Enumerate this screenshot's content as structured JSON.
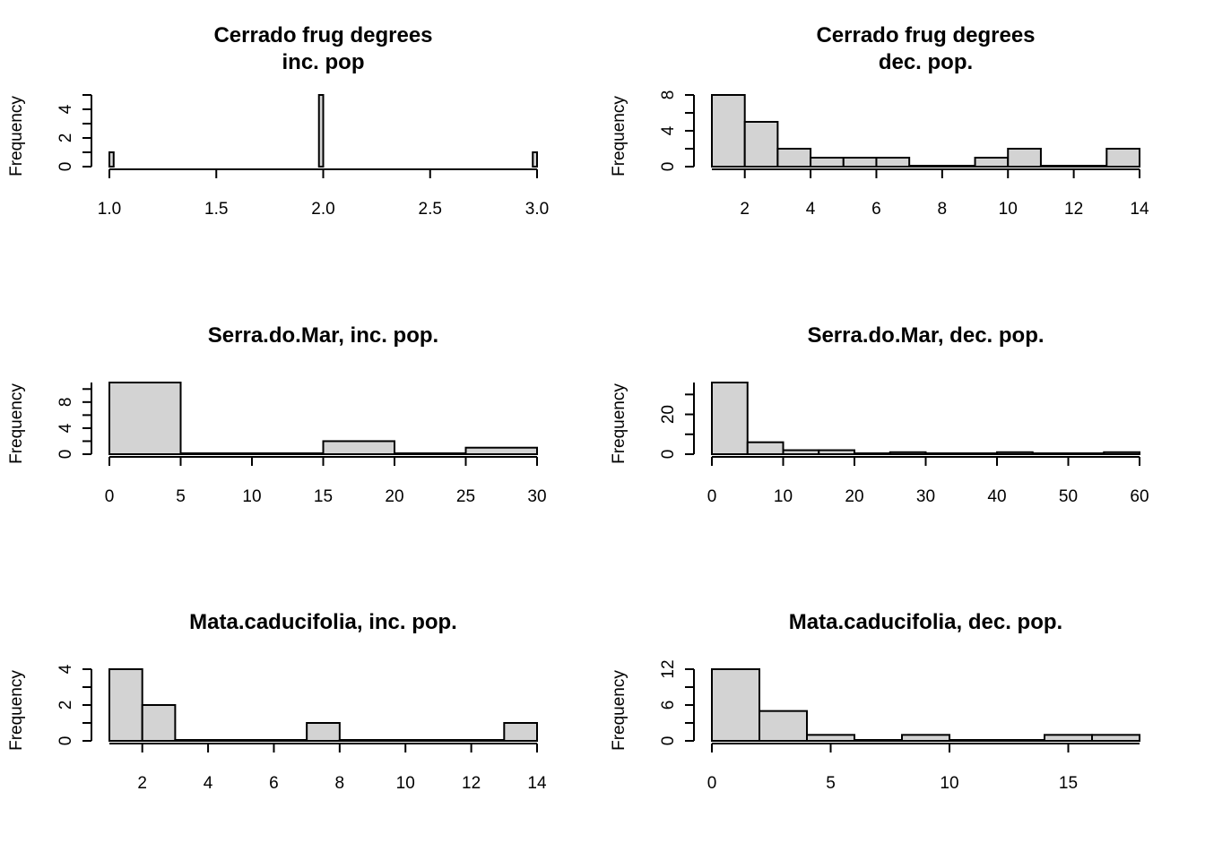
{
  "colors": {
    "bar_fill": "#d3d3d3",
    "bar_stroke": "#000000",
    "axis": "#000000",
    "background": "#ffffff"
  },
  "chart_data": [
    {
      "type": "bar",
      "title": [
        "Cerrado frug degrees",
        "inc. pop"
      ],
      "xlabel": "",
      "ylabel": "Frequency",
      "xlim": [
        1,
        3
      ],
      "ylim": [
        0,
        5
      ],
      "xticks": [
        "1.0",
        "1.5",
        "2.0",
        "2.5",
        "3.0"
      ],
      "yticks": [
        "0",
        "2",
        "4"
      ],
      "bins": [
        {
          "x0": 1.0,
          "x1": 1.02,
          "count": 1
        },
        {
          "x0": 1.98,
          "x1": 2.0,
          "count": 5
        },
        {
          "x0": 2.98,
          "x1": 3.0,
          "count": 1
        }
      ]
    },
    {
      "type": "bar",
      "title": [
        "Cerrado frug degrees",
        "dec. pop."
      ],
      "xlabel": "",
      "ylabel": "Frequency",
      "xlim": [
        1,
        14
      ],
      "ylim": [
        0,
        8
      ],
      "xticks": [
        "2",
        "4",
        "6",
        "8",
        "10",
        "12",
        "14"
      ],
      "yticks": [
        "0",
        "4",
        "8"
      ],
      "bins": [
        {
          "x0": 1,
          "x1": 2,
          "count": 8
        },
        {
          "x0": 2,
          "x1": 3,
          "count": 5
        },
        {
          "x0": 3,
          "x1": 4,
          "count": 2
        },
        {
          "x0": 4,
          "x1": 5,
          "count": 1
        },
        {
          "x0": 5,
          "x1": 6,
          "count": 1
        },
        {
          "x0": 6,
          "x1": 7,
          "count": 1
        },
        {
          "x0": 7,
          "x1": 8,
          "count": 0
        },
        {
          "x0": 8,
          "x1": 9,
          "count": 0
        },
        {
          "x0": 9,
          "x1": 10,
          "count": 1
        },
        {
          "x0": 10,
          "x1": 11,
          "count": 2
        },
        {
          "x0": 11,
          "x1": 12,
          "count": 0
        },
        {
          "x0": 12,
          "x1": 13,
          "count": 0
        },
        {
          "x0": 13,
          "x1": 14,
          "count": 2
        }
      ]
    },
    {
      "type": "bar",
      "title": [
        "Serra.do.Mar, inc. pop."
      ],
      "xlabel": "",
      "ylabel": "Frequency",
      "xlim": [
        0,
        30
      ],
      "ylim": [
        0,
        11
      ],
      "xticks": [
        "0",
        "5",
        "10",
        "15",
        "20",
        "25",
        "30"
      ],
      "yticks": [
        "0",
        "4",
        "8"
      ],
      "bins": [
        {
          "x0": 0,
          "x1": 5,
          "count": 11
        },
        {
          "x0": 5,
          "x1": 10,
          "count": 0
        },
        {
          "x0": 10,
          "x1": 15,
          "count": 0
        },
        {
          "x0": 15,
          "x1": 20,
          "count": 2
        },
        {
          "x0": 20,
          "x1": 25,
          "count": 0
        },
        {
          "x0": 25,
          "x1": 30,
          "count": 1
        }
      ]
    },
    {
      "type": "bar",
      "title": [
        "Serra.do.Mar, dec. pop."
      ],
      "xlabel": "",
      "ylabel": "Frequency",
      "xlim": [
        0,
        60
      ],
      "ylim": [
        0,
        36
      ],
      "xticks": [
        "0",
        "10",
        "20",
        "30",
        "40",
        "50",
        "60"
      ],
      "yticks": [
        "0",
        "20"
      ],
      "bins": [
        {
          "x0": 0,
          "x1": 5,
          "count": 36
        },
        {
          "x0": 5,
          "x1": 10,
          "count": 6
        },
        {
          "x0": 10,
          "x1": 15,
          "count": 2
        },
        {
          "x0": 15,
          "x1": 20,
          "count": 2
        },
        {
          "x0": 20,
          "x1": 25,
          "count": 0
        },
        {
          "x0": 25,
          "x1": 30,
          "count": 1
        },
        {
          "x0": 30,
          "x1": 35,
          "count": 0
        },
        {
          "x0": 35,
          "x1": 40,
          "count": 0
        },
        {
          "x0": 40,
          "x1": 45,
          "count": 1
        },
        {
          "x0": 45,
          "x1": 50,
          "count": 0
        },
        {
          "x0": 50,
          "x1": 55,
          "count": 0
        },
        {
          "x0": 55,
          "x1": 60,
          "count": 1
        }
      ]
    },
    {
      "type": "bar",
      "title": [
        "Mata.caducifolia, inc. pop."
      ],
      "xlabel": "",
      "ylabel": "Frequency",
      "xlim": [
        1,
        14
      ],
      "ylim": [
        0,
        4
      ],
      "xticks": [
        "2",
        "4",
        "6",
        "8",
        "10",
        "12",
        "14"
      ],
      "yticks": [
        "0",
        "2",
        "4"
      ],
      "bins": [
        {
          "x0": 1,
          "x1": 2,
          "count": 4
        },
        {
          "x0": 2,
          "x1": 3,
          "count": 2
        },
        {
          "x0": 3,
          "x1": 4,
          "count": 0
        },
        {
          "x0": 4,
          "x1": 5,
          "count": 0
        },
        {
          "x0": 5,
          "x1": 6,
          "count": 0
        },
        {
          "x0": 6,
          "x1": 7,
          "count": 0
        },
        {
          "x0": 7,
          "x1": 8,
          "count": 1
        },
        {
          "x0": 8,
          "x1": 9,
          "count": 0
        },
        {
          "x0": 9,
          "x1": 10,
          "count": 0
        },
        {
          "x0": 10,
          "x1": 11,
          "count": 0
        },
        {
          "x0": 11,
          "x1": 12,
          "count": 0
        },
        {
          "x0": 12,
          "x1": 13,
          "count": 0
        },
        {
          "x0": 13,
          "x1": 14,
          "count": 1
        }
      ]
    },
    {
      "type": "bar",
      "title": [
        "Mata.caducifolia, dec. pop."
      ],
      "xlabel": "",
      "ylabel": "Frequency",
      "xlim": [
        0,
        18
      ],
      "ylim": [
        0,
        12
      ],
      "xticks": [
        "0",
        "5",
        "10",
        "15"
      ],
      "yticks": [
        "0",
        "6",
        "12"
      ],
      "bins": [
        {
          "x0": 0,
          "x1": 2,
          "count": 12
        },
        {
          "x0": 2,
          "x1": 4,
          "count": 5
        },
        {
          "x0": 4,
          "x1": 6,
          "count": 1
        },
        {
          "x0": 6,
          "x1": 8,
          "count": 0
        },
        {
          "x0": 8,
          "x1": 10,
          "count": 1
        },
        {
          "x0": 10,
          "x1": 12,
          "count": 0
        },
        {
          "x0": 12,
          "x1": 14,
          "count": 0
        },
        {
          "x0": 14,
          "x1": 16,
          "count": 1
        },
        {
          "x0": 16,
          "x1": 18,
          "count": 1
        }
      ]
    }
  ]
}
